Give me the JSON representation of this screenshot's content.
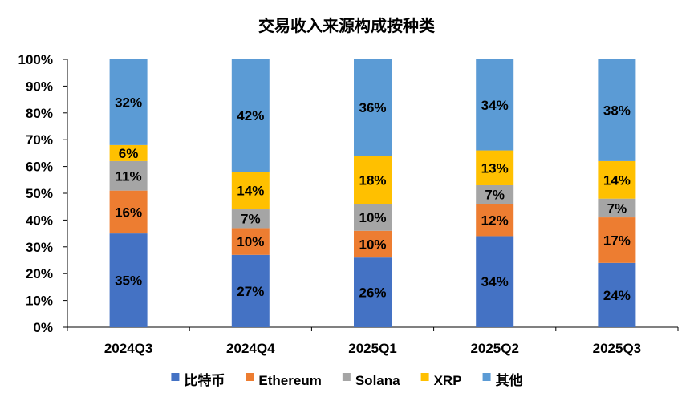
{
  "chart_data": {
    "type": "stacked-bar-100",
    "title": "交易收入来源构成按种类",
    "categories": [
      "2024Q3",
      "2024Q4",
      "2025Q1",
      "2025Q2",
      "2025Q3"
    ],
    "series": [
      {
        "name": "比特币",
        "color": "#4472C4",
        "values": [
          35,
          27,
          26,
          34,
          24
        ]
      },
      {
        "name": "Ethereum",
        "color": "#ED7D31",
        "values": [
          16,
          10,
          10,
          12,
          17
        ]
      },
      {
        "name": "Solana",
        "color": "#A5A5A5",
        "values": [
          11,
          7,
          10,
          7,
          7
        ]
      },
      {
        "name": "XRP",
        "color": "#FFC000",
        "values": [
          6,
          14,
          18,
          13,
          14
        ]
      },
      {
        "name": "其他",
        "color": "#5B9BD5",
        "values": [
          32,
          42,
          36,
          34,
          38
        ]
      }
    ],
    "ylim": [
      0,
      100
    ],
    "y_ticks": [
      "0%",
      "10%",
      "20%",
      "30%",
      "40%",
      "50%",
      "60%",
      "70%",
      "80%",
      "90%",
      "100%"
    ],
    "value_suffix": "%",
    "legend_position": "bottom",
    "grid": false
  }
}
